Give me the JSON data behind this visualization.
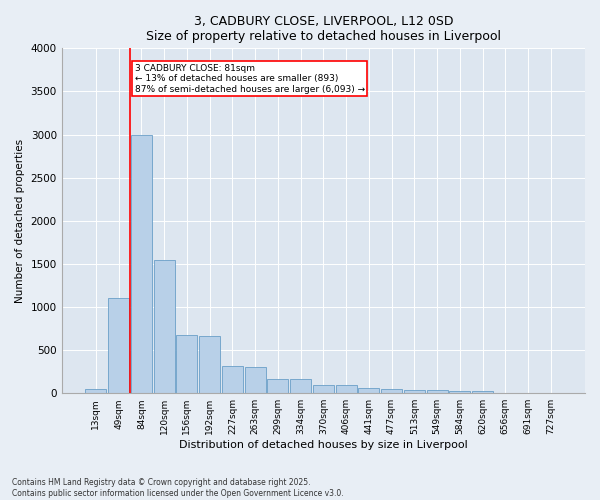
{
  "title1": "3, CADBURY CLOSE, LIVERPOOL, L12 0SD",
  "title2": "Size of property relative to detached houses in Liverpool",
  "xlabel": "Distribution of detached houses by size in Liverpool",
  "ylabel": "Number of detached properties",
  "bar_labels": [
    "13sqm",
    "49sqm",
    "84sqm",
    "120sqm",
    "156sqm",
    "192sqm",
    "227sqm",
    "263sqm",
    "299sqm",
    "334sqm",
    "370sqm",
    "406sqm",
    "441sqm",
    "477sqm",
    "513sqm",
    "549sqm",
    "584sqm",
    "620sqm",
    "656sqm",
    "691sqm",
    "727sqm"
  ],
  "bar_values": [
    50,
    1100,
    3000,
    1550,
    680,
    660,
    310,
    300,
    170,
    170,
    100,
    95,
    55,
    45,
    42,
    38,
    30,
    28,
    5,
    3,
    2
  ],
  "bar_color": "#b8d0e8",
  "bar_edge_color": "#6a9fc8",
  "property_line_label": "3 CADBURY CLOSE: 81sqm",
  "annotation_line1": "← 13% of detached houses are smaller (893)",
  "annotation_line2": "87% of semi-detached houses are larger (6,093) →",
  "ylim": [
    0,
    4000
  ],
  "yticks": [
    0,
    500,
    1000,
    1500,
    2000,
    2500,
    3000,
    3500,
    4000
  ],
  "footnote1": "Contains HM Land Registry data © Crown copyright and database right 2025.",
  "footnote2": "Contains public sector information licensed under the Open Government Licence v3.0.",
  "bg_color": "#e8eef5",
  "plot_bg_color": "#dde6f0"
}
